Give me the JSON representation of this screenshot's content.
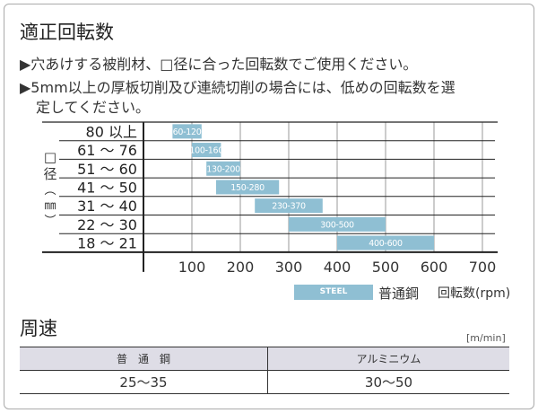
{
  "title": "適正回転数",
  "notes": [
    "▶穴あけする被削材、□径に合った回転数でご使用ください。",
    "▶5mm以上の厚板切削及び連続切削の場合には、低めの回転数を選",
    "定してください。"
  ],
  "chart_data": {
    "type": "bar",
    "orientation": "horizontal-range",
    "ylabel": [
      "□",
      "径",
      "︵",
      "㎜",
      "︶"
    ],
    "xlabel": "回転数(rpm)",
    "categories": [
      "80 以上",
      "61 ～ 76",
      "51 ～ 60",
      "41 ～ 50",
      "31 ～ 40",
      "22 ～ 30",
      "18 ～ 21"
    ],
    "series": [
      {
        "name": "STEEL",
        "legend_label": "普通鋼",
        "color": "#8fbfd3",
        "ranges": [
          [
            60,
            120
          ],
          [
            100,
            160
          ],
          [
            130,
            200
          ],
          [
            150,
            280
          ],
          [
            230,
            370
          ],
          [
            300,
            500
          ],
          [
            400,
            600
          ]
        ],
        "labels": [
          "60-120",
          "100-160",
          "130-200",
          "150-280",
          "230-370",
          "300-500",
          "400-600"
        ]
      }
    ],
    "xticks": [
      100,
      200,
      300,
      400,
      500,
      600,
      700
    ],
    "xlim": [
      0,
      700
    ],
    "grid": true
  },
  "section2": {
    "title": "周速",
    "unit": "[m/min]",
    "headers": [
      "普　通　鋼",
      "アルミニウム"
    ],
    "values": [
      "25〜35",
      "30〜50"
    ]
  }
}
